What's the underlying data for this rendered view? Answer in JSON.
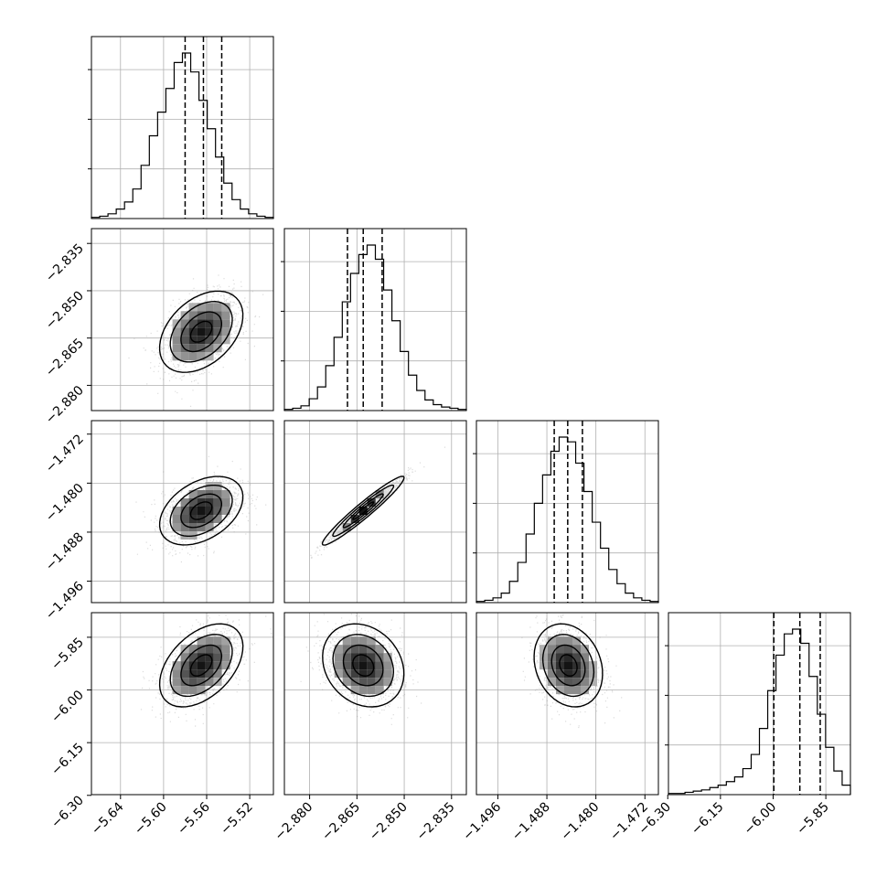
{
  "chart_data": {
    "type": "corner",
    "parameters": [
      {
        "mean": -5.565,
        "sd": 0.018,
        "qlow": -5.58,
        "qmid": -5.563,
        "qhigh": -5.546,
        "range": [
          -5.667,
          -5.498
        ],
        "ticks": [
          -5.64,
          -5.6,
          -5.56,
          -5.52
        ],
        "tick_labels": [
          "−5.64",
          "−5.60",
          "−5.56",
          "−5.52"
        ]
      },
      {
        "mean": -2.863,
        "sd": 0.006,
        "qlow": -2.868,
        "qmid": -2.863,
        "qhigh": -2.857,
        "range": [
          -2.888,
          -2.8303
        ],
        "ticks": [
          -2.88,
          -2.865,
          -2.85,
          -2.835
        ],
        "tick_labels": [
          "−2.880",
          "−2.865",
          "−2.850",
          "−2.835"
        ]
      },
      {
        "mean": -1.4845,
        "sd": 0.0026,
        "qlow": -1.4868,
        "qmid": -1.4846,
        "qhigh": -1.4822,
        "range": [
          -1.4995,
          -1.4698
        ],
        "ticks": [
          -1.496,
          -1.488,
          -1.48,
          -1.472
        ],
        "tick_labels": [
          "−1.496",
          "−1.488",
          "−1.480",
          "−1.472"
        ]
      },
      {
        "mean": -5.93,
        "sd": 0.055,
        "qlow": -5.998,
        "qmid": -5.924,
        "qhigh": -5.866,
        "range": [
          -6.298,
          -5.78
        ],
        "ticks": [
          -6.3,
          -6.15,
          -6.0,
          -5.85
        ],
        "tick_labels": [
          "−6.30",
          "−6.15",
          "−6.00",
          "−5.85"
        ]
      }
    ],
    "correlations": [
      [
        1,
        0.4,
        0.4,
        0.45
      ],
      [
        0.4,
        1,
        0.98,
        -0.2
      ],
      [
        0.4,
        0.98,
        1,
        -0.2
      ],
      [
        0.45,
        -0.2,
        -0.2,
        1
      ]
    ],
    "histograms": [
      [
        1,
        2,
        4,
        8,
        14,
        25,
        45,
        70,
        90,
        110,
        132,
        140,
        124,
        100,
        76,
        52,
        30,
        16,
        8,
        4,
        2,
        1
      ],
      [
        1,
        2,
        4,
        10,
        20,
        38,
        62,
        92,
        116,
        132,
        140,
        128,
        102,
        76,
        50,
        30,
        17,
        9,
        5,
        3,
        2,
        1
      ],
      [
        1,
        2,
        4,
        8,
        18,
        34,
        58,
        84,
        108,
        128,
        140,
        136,
        118,
        94,
        68,
        46,
        28,
        16,
        8,
        4,
        2,
        1
      ],
      [
        1,
        1,
        2,
        3,
        4,
        6,
        8,
        11,
        15,
        22,
        34,
        56,
        88,
        118,
        136,
        140,
        128,
        100,
        68,
        40,
        20,
        8
      ]
    ],
    "grid": true,
    "contours": true,
    "quantile_lines": "dashed"
  }
}
